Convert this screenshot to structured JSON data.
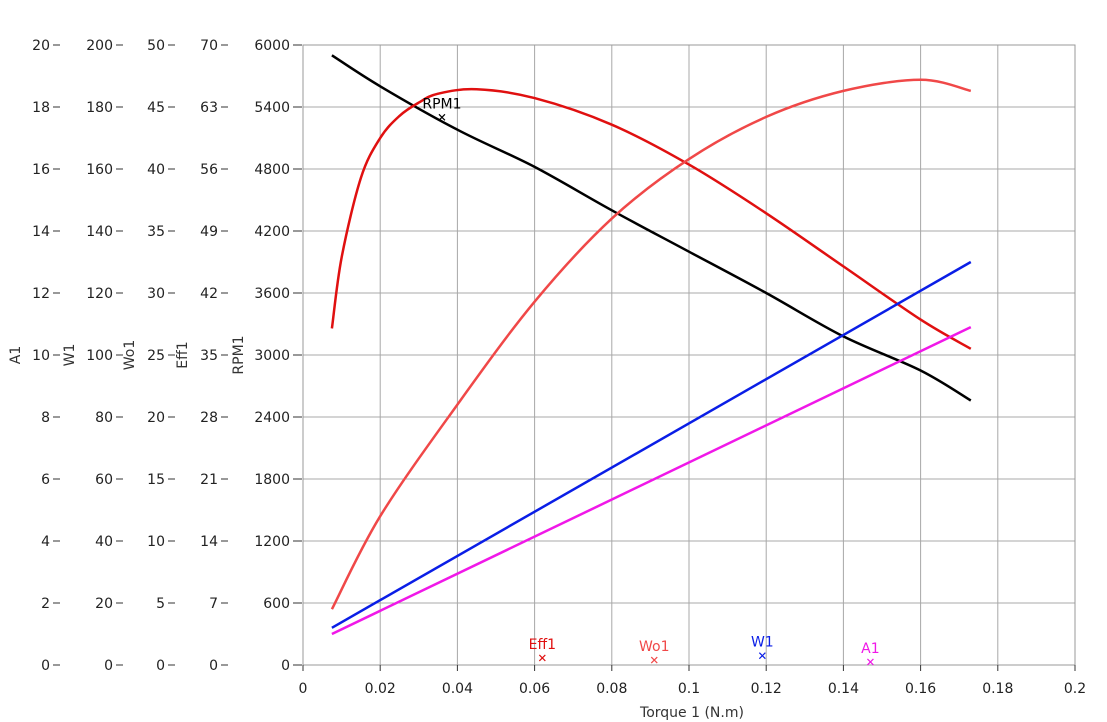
{
  "chart_data": {
    "type": "line",
    "xlabel": "Torque 1 (N.m)",
    "xlim": [
      0,
      0.2
    ],
    "xticks": [
      0,
      0.02,
      0.04,
      0.06,
      0.08,
      0.1,
      0.12,
      0.14,
      0.16,
      0.18,
      0.2
    ],
    "xtick_labels": [
      "0",
      "0.02",
      "0.04",
      "0.06",
      "0.08",
      "0.1",
      "0.12",
      "0.14",
      "0.16",
      "0.18",
      "0.2"
    ],
    "grid": true,
    "y_axes": [
      {
        "label": "A1",
        "ylim": [
          0,
          20
        ],
        "tick_labels": [
          "0",
          "2",
          "4",
          "6",
          "8",
          "10",
          "12",
          "14",
          "16",
          "18",
          "20"
        ]
      },
      {
        "label": "W1",
        "ylim": [
          0,
          200
        ],
        "tick_labels": [
          "0",
          "20",
          "40",
          "60",
          "80",
          "100",
          "120",
          "140",
          "160",
          "180",
          "200"
        ]
      },
      {
        "label": "Wo1",
        "ylim": [
          0,
          50
        ],
        "tick_labels": [
          "0",
          "5",
          "10",
          "15",
          "20",
          "25",
          "30",
          "35",
          "40",
          "45",
          "50"
        ]
      },
      {
        "label": "Eff1",
        "ylim": [
          0,
          70
        ],
        "tick_labels": [
          "0",
          "7",
          "14",
          "21",
          "28",
          "35",
          "42",
          "49",
          "56",
          "63",
          "70"
        ]
      },
      {
        "label": "RPM1",
        "ylim": [
          0,
          6000
        ],
        "tick_labels": [
          "0",
          "600",
          "1200",
          "1800",
          "2400",
          "3000",
          "3600",
          "4200",
          "4800",
          "5400",
          "6000"
        ]
      }
    ],
    "series": [
      {
        "name": "RPM1",
        "axis": "RPM1",
        "color": "#000000",
        "x": [
          0.0075,
          0.02,
          0.04,
          0.06,
          0.08,
          0.1,
          0.12,
          0.14,
          0.16,
          0.173
        ],
        "values": [
          5900,
          5600,
          5180,
          4820,
          4400,
          4000,
          3600,
          3180,
          2850,
          2560
        ],
        "marker": {
          "x": 0.036,
          "y": 5300
        }
      },
      {
        "name": "Eff1",
        "axis": "Eff1",
        "color": "#e01010",
        "x": [
          0.0075,
          0.01,
          0.015,
          0.02,
          0.025,
          0.03,
          0.035,
          0.045,
          0.06,
          0.08,
          0.1,
          0.12,
          0.14,
          0.16,
          0.173
        ],
        "values": [
          38,
          46,
          55,
          59.5,
          62,
          63.5,
          64.5,
          65,
          64,
          61,
          56.5,
          51,
          45,
          39,
          35.7
        ],
        "marker": {
          "x": 0.062,
          "y": 0.8
        }
      },
      {
        "name": "Wo1",
        "axis": "Wo1",
        "color": "#f04848",
        "x": [
          0.0075,
          0.02,
          0.04,
          0.06,
          0.08,
          0.1,
          0.12,
          0.14,
          0.16,
          0.173
        ],
        "values": [
          4.5,
          12,
          21,
          29.3,
          36,
          40.8,
          44.2,
          46.3,
          47.2,
          46.3
        ],
        "marker": {
          "x": 0.091,
          "y": 0.4
        }
      },
      {
        "name": "W1",
        "axis": "W1",
        "color": "#0a1ee6",
        "x": [
          0.0075,
          0.173
        ],
        "values": [
          12,
          130
        ],
        "marker": {
          "x": 0.119,
          "y": 3
        }
      },
      {
        "name": "A1",
        "axis": "A1",
        "color": "#f018e8",
        "x": [
          0.0075,
          0.173
        ],
        "values": [
          1,
          10.9
        ],
        "marker": {
          "x": 0.147,
          "y": 0.1
        }
      }
    ],
    "series_labels": [
      {
        "text": "RPM1",
        "series": "RPM1"
      },
      {
        "text": "Eff1",
        "series": "Eff1"
      },
      {
        "text": "Wo1",
        "series": "Wo1"
      },
      {
        "text": "W1",
        "series": "W1"
      },
      {
        "text": "A1",
        "series": "A1"
      }
    ]
  }
}
